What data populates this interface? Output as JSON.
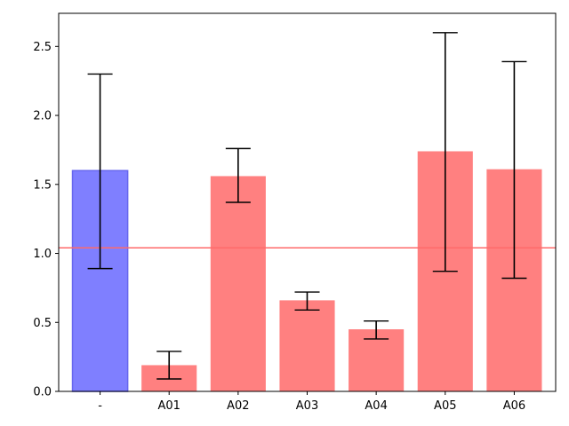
{
  "chart_data": {
    "type": "bar",
    "title": "",
    "xlabel": "",
    "ylabel": "",
    "categories": [
      "-",
      "A01",
      "A02",
      "A03",
      "A04",
      "A05",
      "A06"
    ],
    "values": [
      1.6,
      0.19,
      1.56,
      0.66,
      0.45,
      1.74,
      1.61
    ],
    "errors": [
      {
        "low": 0.89,
        "high": 2.3
      },
      {
        "low": 0.09,
        "high": 0.29
      },
      {
        "low": 1.37,
        "high": 1.76
      },
      {
        "low": 0.59,
        "high": 0.72
      },
      {
        "low": 0.38,
        "high": 0.51
      },
      {
        "low": 0.87,
        "high": 2.6
      },
      {
        "low": 0.82,
        "high": 2.39
      }
    ],
    "bar_colors": [
      "#7f7fff",
      "#ff8080",
      "#ff8080",
      "#ff8080",
      "#ff8080",
      "#ff8080",
      "#ff8080"
    ],
    "bar_edge_colors": [
      "#6666ee",
      "none",
      "none",
      "none",
      "none",
      "none",
      "none"
    ],
    "reference_line": {
      "value": 1.04,
      "color": "#ff6a6a"
    },
    "ylim": [
      0,
      2.74
    ],
    "yticks": [
      0.0,
      0.5,
      1.0,
      1.5,
      2.0,
      2.5
    ],
    "ytick_labels": [
      "0.0",
      "0.5",
      "1.0",
      "1.5",
      "2.0",
      "2.5"
    ],
    "grid": false
  }
}
